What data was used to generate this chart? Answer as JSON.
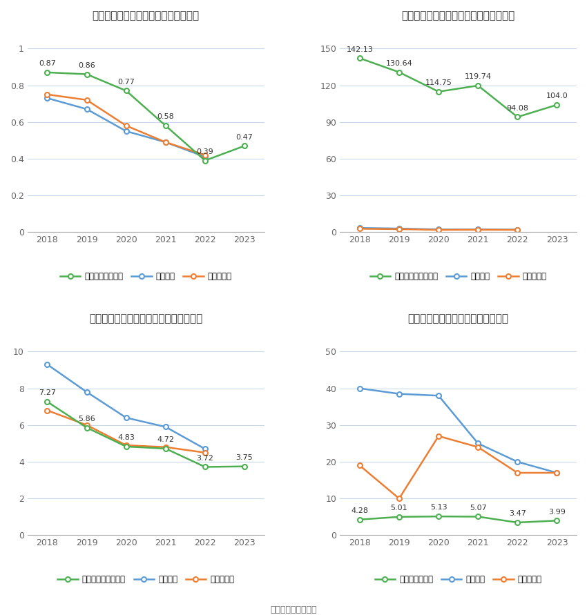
{
  "years": [
    2018,
    2019,
    2020,
    2021,
    2022,
    2023
  ],
  "charts": [
    {
      "title": "零点有数历年总资产周转率情况（次）",
      "company_label": "公司总资产周转率",
      "industry_mean_label": "行业均值",
      "industry_median_label": "行业中位数",
      "company": [
        0.87,
        0.86,
        0.77,
        0.58,
        0.39,
        0.47
      ],
      "industry_mean": [
        0.73,
        0.67,
        0.55,
        0.49,
        0.41,
        null
      ],
      "industry_median": [
        0.75,
        0.72,
        0.58,
        0.49,
        0.42,
        null
      ],
      "ylim": [
        0,
        1.1
      ],
      "yticks": [
        0,
        0.2,
        0.4,
        0.6,
        0.8,
        1
      ],
      "ytick_labels": [
        "0",
        "0.2",
        "0.4",
        "0.6",
        "0.8",
        "1"
      ]
    },
    {
      "title": "零点有数历年固定资产周转率情况（次）",
      "company_label": "公司固定资产周转率",
      "industry_mean_label": "行业均值",
      "industry_median_label": "行业中位数",
      "company": [
        142.13,
        130.64,
        114.75,
        119.74,
        94.08,
        104.0
      ],
      "industry_mean": [
        3.5,
        3.0,
        2.2,
        2.2,
        2.1,
        null
      ],
      "industry_median": [
        2.8,
        2.5,
        1.9,
        2.0,
        1.9,
        null
      ],
      "ylim": [
        0,
        165
      ],
      "yticks": [
        0,
        30,
        60,
        90,
        120,
        150
      ],
      "ytick_labels": [
        "0",
        "30",
        "60",
        "90",
        "120",
        "150"
      ]
    },
    {
      "title": "零点有数历年应收账款周转率情况（次）",
      "company_label": "公司应收账款周转率",
      "industry_mean_label": "行业均值",
      "industry_median_label": "行业中位数",
      "company": [
        7.27,
        5.86,
        4.83,
        4.72,
        3.72,
        3.75
      ],
      "industry_mean": [
        9.3,
        7.8,
        6.4,
        5.9,
        4.7,
        null
      ],
      "industry_median": [
        6.8,
        6.0,
        4.9,
        4.8,
        4.5,
        null
      ],
      "ylim": [
        0,
        11
      ],
      "yticks": [
        0,
        2,
        4,
        6,
        8,
        10
      ],
      "ytick_labels": [
        "0",
        "2",
        "4",
        "6",
        "8",
        "10"
      ]
    },
    {
      "title": "零点有数历年存货周转率情况（次）",
      "company_label": "公司存货周转率",
      "industry_mean_label": "行业均值",
      "industry_median_label": "行业中位数",
      "company": [
        4.28,
        5.01,
        5.13,
        5.07,
        3.47,
        3.99
      ],
      "industry_mean": [
        40.0,
        38.5,
        38.0,
        25.0,
        20.0,
        17.0
      ],
      "industry_median": [
        19.0,
        10.0,
        27.0,
        24.0,
        17.0,
        17.0
      ],
      "ylim": [
        0,
        55
      ],
      "yticks": [
        0,
        10,
        20,
        30,
        40,
        50
      ],
      "ytick_labels": [
        "0",
        "10",
        "20",
        "30",
        "40",
        "50"
      ]
    }
  ],
  "green_color": "#4caf50",
  "blue_color": "#5b9bd5",
  "orange_color": "#ed7d31",
  "bg_color": "#ffffff",
  "grid_color": "#c8d8e8",
  "axis_color": "#aaaaaa",
  "label_color": "#666666",
  "title_color": "#333333",
  "source_text": "数据来源：恒生聚源"
}
